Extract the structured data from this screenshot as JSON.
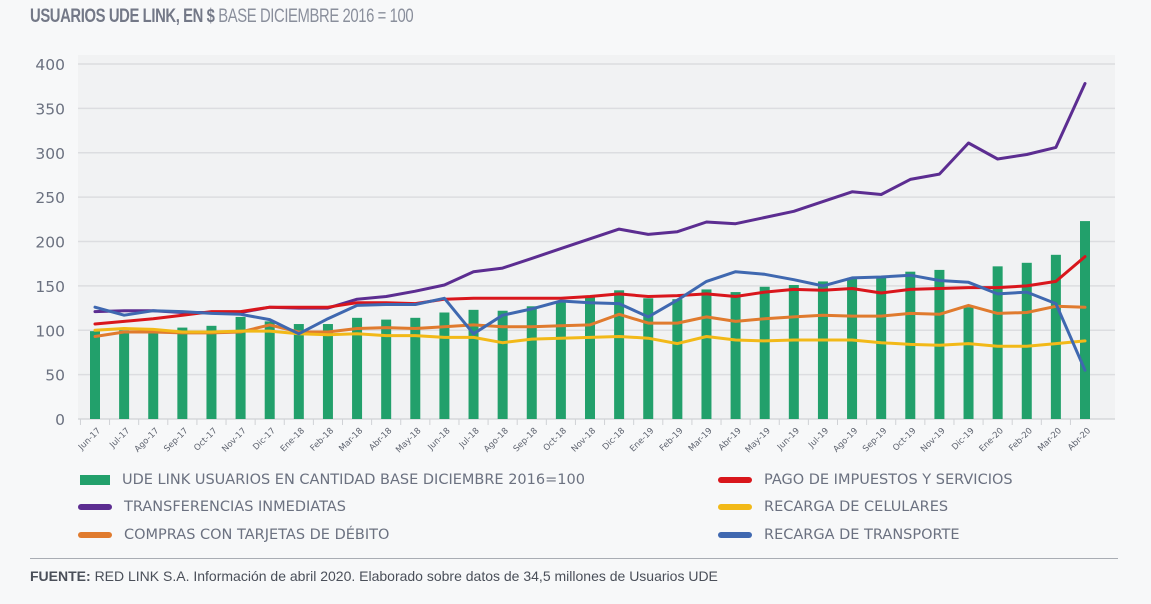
{
  "header": {
    "title_bold": "USUARIOS UDE LINK, EN $",
    "title_light": "BASE DICIEMBRE 2016 = 100"
  },
  "footer": {
    "source_bold": "FUENTE:",
    "source_text": "RED LINK S.A. Información de abril 2020. Elaborado sobre datos de 34,5 millones de Usuarios UDE"
  },
  "chart_data": {
    "type": "bar",
    "title": "USUARIOS UDE LINK, EN $ BASE DICIEMBRE 2016 = 100",
    "xlabel": "",
    "ylabel": "",
    "ylim": [
      0,
      400
    ],
    "yticks": [
      0,
      50,
      100,
      150,
      200,
      250,
      300,
      350,
      400
    ],
    "grid": true,
    "legend_position": "bottom",
    "categories": [
      "Jun-17",
      "Jul-17",
      "Ago-17",
      "Sep-17",
      "Oct-17",
      "Nov-17",
      "Dic-17",
      "Ene-18",
      "Feb-18",
      "Mar-18",
      "Abr-18",
      "May-18",
      "Jun-18",
      "Jul-18",
      "Ago-18",
      "Sep-18",
      "Oct-18",
      "Nov-18",
      "Dic-18",
      "Ene-19",
      "Feb-19",
      "Mar-19",
      "Abr-19",
      "May-19",
      "Jun-19",
      "Jul-19",
      "Ago-19",
      "Sep-19",
      "Oct-19",
      "Nov-19",
      "Dic-19",
      "Ene-20",
      "Feb-20",
      "Mar-20",
      "Abr-20"
    ],
    "series": [
      {
        "name": "UDE LINK USUARIOS EN CANTIDAD BASE DICIEMBRE 2016=100",
        "kind": "bar",
        "color": "#22a06b",
        "values": [
          99,
          100,
          98,
          103,
          105,
          115,
          110,
          107,
          107,
          114,
          112,
          114,
          120,
          123,
          122,
          127,
          132,
          137,
          145,
          136,
          135,
          146,
          143,
          149,
          151,
          155,
          159,
          159,
          166,
          168,
          126,
          172,
          176,
          185,
          223
        ]
      },
      {
        "name": "TRANSFERENCIAS INMEDIATAS",
        "kind": "line",
        "color": "#5c2d91",
        "values": [
          121,
          122,
          122,
          120,
          120,
          120,
          126,
          125,
          125,
          135,
          138,
          144,
          151,
          166,
          170,
          181,
          192,
          203,
          214,
          208,
          211,
          222,
          220,
          227,
          234,
          245,
          256,
          253,
          270,
          276,
          311,
          293,
          298,
          306,
          378
        ]
      },
      {
        "name": "COMPRAS CON TARJETAS DE DÉBITO",
        "kind": "line",
        "color": "#e07b2e",
        "values": [
          93,
          98,
          98,
          97,
          97,
          98,
          106,
          98,
          98,
          102,
          103,
          102,
          104,
          106,
          104,
          104,
          105,
          106,
          118,
          108,
          108,
          115,
          110,
          113,
          115,
          117,
          116,
          116,
          119,
          118,
          128,
          119,
          120,
          127,
          126
        ]
      },
      {
        "name": "PAGO DE IMPUESTOS Y SERVICIOS",
        "kind": "line",
        "color": "#d9161c",
        "values": [
          107,
          110,
          113,
          117,
          121,
          121,
          126,
          126,
          126,
          131,
          131,
          130,
          135,
          136,
          136,
          136,
          136,
          138,
          141,
          138,
          139,
          141,
          138,
          143,
          146,
          145,
          147,
          142,
          146,
          147,
          148,
          148,
          150,
          155,
          183
        ]
      },
      {
        "name": "RECARGA DE CELULARES",
        "kind": "line",
        "color": "#f2b918",
        "values": [
          100,
          102,
          101,
          98,
          98,
          99,
          99,
          96,
          95,
          96,
          94,
          94,
          92,
          92,
          86,
          90,
          91,
          92,
          93,
          91,
          85,
          93,
          89,
          88,
          89,
          89,
          89,
          86,
          84,
          83,
          85,
          82,
          82,
          85,
          88
        ]
      },
      {
        "name": "RECARGA DE TRANSPORTE",
        "kind": "line",
        "color": "#3f68b0",
        "values": [
          126,
          117,
          122,
          121,
          119,
          118,
          112,
          96,
          113,
          128,
          129,
          129,
          136,
          96,
          117,
          124,
          133,
          131,
          130,
          115,
          134,
          155,
          166,
          163,
          157,
          150,
          159,
          160,
          162,
          156,
          154,
          141,
          143,
          130,
          55
        ]
      }
    ]
  },
  "legend": {
    "items": [
      {
        "label": "UDE LINK USUARIOS EN CANTIDAD BASE DICIEMBRE 2016=100",
        "color": "#22a06b",
        "kind": "bar"
      },
      {
        "label": "PAGO DE IMPUESTOS Y SERVICIOS",
        "color": "#d9161c",
        "kind": "line"
      },
      {
        "label": "TRANSFERENCIAS INMEDIATAS",
        "color": "#5c2d91",
        "kind": "line"
      },
      {
        "label": "RECARGA DE CELULARES",
        "color": "#f2b918",
        "kind": "line"
      },
      {
        "label": "COMPRAS CON TARJETAS DE DÉBITO",
        "color": "#e07b2e",
        "kind": "line"
      },
      {
        "label": "RECARGA DE TRANSPORTE",
        "color": "#3f68b0",
        "kind": "line"
      }
    ]
  }
}
